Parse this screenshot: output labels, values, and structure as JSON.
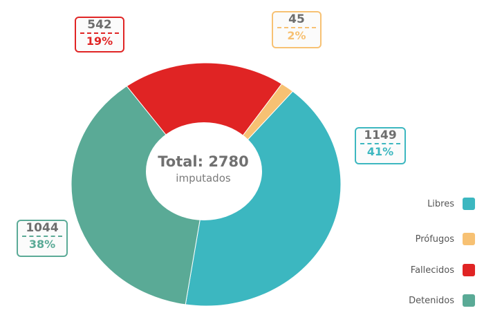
{
  "chart_data": {
    "type": "pie",
    "center_title": "Total: 2780",
    "center_subtitle": "imputados",
    "slices": [
      {
        "label": "Libres",
        "value": 1149,
        "percent_label": "41%",
        "color": "#3cb7c0"
      },
      {
        "label": "Detenidos",
        "value": 1044,
        "percent_label": "38%",
        "color": "#5aaa96"
      },
      {
        "label": "Fallecidos",
        "value": 542,
        "percent_label": "19%",
        "color": "#e02424"
      },
      {
        "label": "Prófugos",
        "value": 45,
        "percent_label": "2%",
        "color": "#f7c173"
      }
    ],
    "legend": [
      {
        "label": "Libres",
        "color": "#3cb7c0"
      },
      {
        "label": "Prófugos",
        "color": "#f7c173"
      },
      {
        "label": "Fallecidos",
        "color": "#e02424"
      },
      {
        "label": "Detenidos",
        "color": "#5aaa96"
      }
    ],
    "legend_position": "bottom-right"
  },
  "callouts": {
    "libres": {
      "count": "1149",
      "pct": "41%"
    },
    "detenidos": {
      "count": "1044",
      "pct": "38%"
    },
    "fallecidos": {
      "count": "542",
      "pct": "19%"
    },
    "profugos": {
      "count": "45",
      "pct": "2%"
    }
  }
}
